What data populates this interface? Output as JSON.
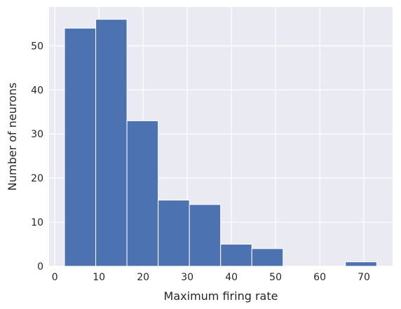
{
  "chart_data": {
    "type": "bar",
    "chart_subtype": "histogram",
    "xlabel": "Maximum firing rate",
    "ylabel": "Number of neurons",
    "xlim": [
      -1.3,
      76.5
    ],
    "ylim": [
      0,
      58.8
    ],
    "xticks": [
      0,
      10,
      20,
      30,
      40,
      50,
      60,
      70
    ],
    "yticks": [
      0,
      10,
      20,
      30,
      40,
      50
    ],
    "bin_edges": [
      2.2,
      9.27,
      16.34,
      23.41,
      30.48,
      37.55,
      44.62,
      51.69,
      58.76,
      65.83,
      72.9
    ],
    "counts": [
      54,
      56,
      33,
      15,
      14,
      5,
      4,
      0,
      0,
      1
    ],
    "grid": true,
    "legend": "none",
    "colors": {
      "bar_fill": "#4c72b0",
      "bar_edge": "#ffffff",
      "plot_background": "#eaeaf2",
      "grid": "#ffffff",
      "text": "#262626"
    }
  }
}
